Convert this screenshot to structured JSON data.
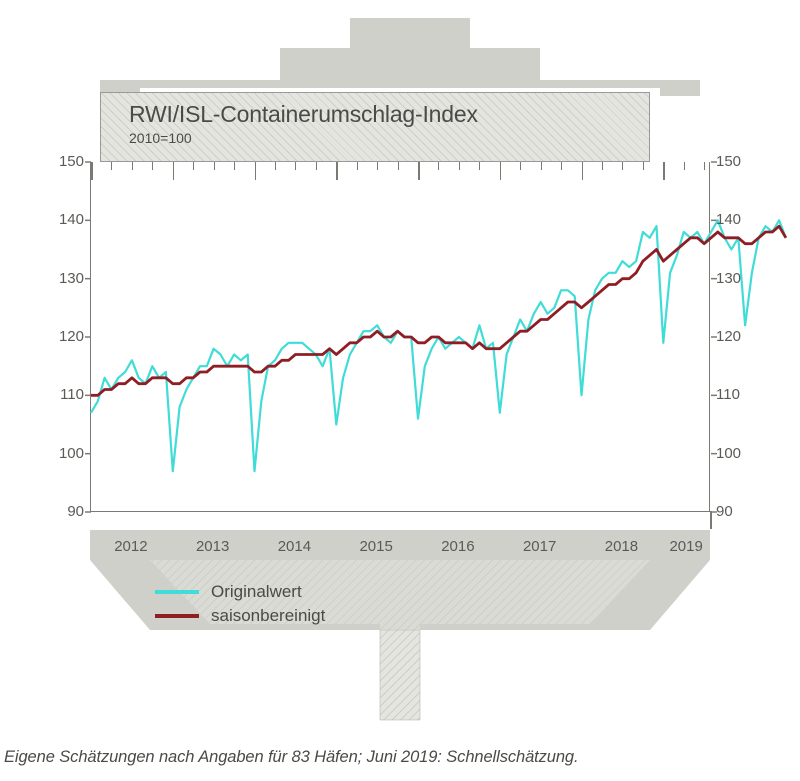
{
  "title": "RWI/ISL-Containerumschlag-Index",
  "subtitle": "2010=100",
  "footnote": "Eigene Schätzungen nach Angaben für 83 Häfen; Juni 2019: Schnellschätzung.",
  "chart": {
    "type": "line",
    "ylim": [
      90,
      150
    ],
    "yticks": [
      90,
      100,
      110,
      120,
      130,
      140,
      150
    ],
    "xlim": [
      0,
      91
    ],
    "year_labels": [
      "2012",
      "2013",
      "2014",
      "2015",
      "2016",
      "2017",
      "2018",
      "2019"
    ],
    "year_tick_positions": [
      0,
      12,
      24,
      36,
      48,
      60,
      72,
      84
    ],
    "minor_tick_months": 3,
    "colors": {
      "original": "#3fdcd8",
      "seasonal": "#8f1e24",
      "axis": "#7a7a75",
      "text": "#4a4a46",
      "ship_fill": "#d0d0cb",
      "hatch_bg": "#e5e5e0",
      "hatch_fg": "#bfbfba",
      "background": "#ffffff"
    },
    "line_width_original": 2.2,
    "line_width_seasonal": 2.8,
    "legend": [
      {
        "label": "Originalwert",
        "color": "#3fdcd8"
      },
      {
        "label": "saisonbereinigt",
        "color": "#8f1e24"
      }
    ],
    "series": {
      "original": [
        107,
        109,
        113,
        111,
        113,
        114,
        116,
        113,
        112,
        115,
        113,
        114,
        97,
        108,
        111,
        113,
        115,
        115,
        118,
        117,
        115,
        117,
        116,
        117,
        97,
        109,
        115,
        116,
        118,
        119,
        119,
        119,
        118,
        117,
        115,
        118,
        105,
        113,
        117,
        119,
        121,
        121,
        122,
        120,
        119,
        121,
        120,
        120,
        106,
        115,
        118,
        120,
        118,
        119,
        120,
        119,
        118,
        122,
        118,
        119,
        107,
        117,
        120,
        123,
        121,
        124,
        126,
        124,
        125,
        128,
        128,
        127,
        110,
        123,
        128,
        130,
        131,
        131,
        133,
        132,
        133,
        138,
        137,
        139,
        119,
        131,
        134,
        138,
        137,
        138,
        136,
        138,
        140,
        137,
        135,
        137,
        122,
        131,
        137,
        139,
        138,
        140,
        137
      ],
      "seasonal": [
        110,
        110,
        111,
        111,
        112,
        112,
        113,
        112,
        112,
        113,
        113,
        113,
        112,
        112,
        113,
        113,
        114,
        114,
        115,
        115,
        115,
        115,
        115,
        115,
        114,
        114,
        115,
        115,
        116,
        116,
        117,
        117,
        117,
        117,
        117,
        118,
        117,
        118,
        119,
        119,
        120,
        120,
        121,
        120,
        120,
        121,
        120,
        120,
        119,
        119,
        120,
        120,
        119,
        119,
        119,
        119,
        118,
        119,
        118,
        118,
        118,
        119,
        120,
        121,
        121,
        122,
        123,
        123,
        124,
        125,
        126,
        126,
        125,
        126,
        127,
        128,
        129,
        129,
        130,
        130,
        131,
        133,
        134,
        135,
        133,
        134,
        135,
        136,
        137,
        137,
        136,
        137,
        138,
        137,
        137,
        137,
        136,
        136,
        137,
        138,
        138,
        139,
        137
      ]
    }
  },
  "typography": {
    "title_fontsize": 23,
    "subtitle_fontsize": 14,
    "axis_label_fontsize": 15,
    "legend_fontsize": 17,
    "footnote_fontsize": 16.5
  }
}
